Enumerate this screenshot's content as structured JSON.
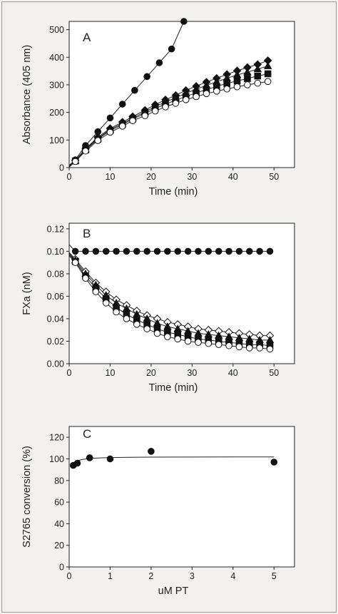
{
  "chart_data": [
    {
      "type": "line",
      "panel_label": "A",
      "xlabel": "Time (min)",
      "ylabel": "Absorbance (405 nm)",
      "xlim": [
        0,
        55
      ],
      "ylim": [
        0,
        530
      ],
      "xticks": [
        0,
        10,
        20,
        30,
        40,
        50
      ],
      "yticks": [
        0,
        100,
        200,
        300,
        400,
        500
      ],
      "grid": false,
      "series": [
        {
          "marker": "filled-circle",
          "x": [
            1.5,
            4,
            7,
            10,
            13,
            16,
            19,
            22,
            25,
            28
          ],
          "y": [
            28,
            80,
            130,
            180,
            230,
            280,
            330,
            380,
            430,
            530
          ]
        },
        {
          "marker": "filled-diamond",
          "x": [
            1.5,
            4,
            7,
            10,
            13,
            15.5,
            18.5,
            21,
            23.5,
            26,
            28.5,
            31,
            33.5,
            36,
            38.5,
            41,
            43.5,
            46,
            48.5
          ],
          "y": [
            26,
            68,
            110,
            142,
            165,
            185,
            208,
            228,
            246,
            262,
            280,
            295,
            310,
            324,
            338,
            351,
            363,
            374,
            388
          ]
        },
        {
          "marker": "filled-triangle",
          "x": [
            1.5,
            4,
            7,
            10,
            13,
            15.5,
            18.5,
            21,
            23.5,
            26,
            28.5,
            31,
            33.5,
            36,
            38.5,
            41,
            43.5,
            46,
            48.5
          ],
          "y": [
            25,
            66,
            106,
            138,
            160,
            180,
            202,
            221,
            238,
            253,
            270,
            284,
            298,
            311,
            324,
            336,
            346,
            357,
            368
          ]
        },
        {
          "marker": "filled-square",
          "x": [
            1.5,
            4,
            7,
            10,
            13,
            15.5,
            18.5,
            21,
            23.5,
            26,
            28.5,
            31,
            33.5,
            36,
            38.5,
            41,
            43.5,
            46,
            48.5
          ],
          "y": [
            24,
            64,
            103,
            134,
            156,
            176,
            196,
            214,
            230,
            244,
            258,
            271,
            283,
            294,
            305,
            314,
            323,
            332,
            340
          ]
        },
        {
          "marker": "open-circle",
          "x": [
            1.5,
            4,
            7,
            10,
            13,
            15.5,
            18.5,
            21,
            23.5,
            26,
            28.5,
            31,
            33.5,
            36,
            38.5,
            41,
            43.5,
            46,
            48.5
          ],
          "y": [
            22,
            60,
            98,
            128,
            150,
            170,
            188,
            205,
            220,
            233,
            246,
            257,
            268,
            277,
            285,
            293,
            300,
            306,
            312
          ]
        }
      ]
    },
    {
      "type": "line",
      "panel_label": "B",
      "xlabel": "Time (min)",
      "ylabel": "FXa (nM)",
      "xlim": [
        0,
        55
      ],
      "ylim": [
        0,
        0.125
      ],
      "xticks": [
        0,
        10,
        20,
        30,
        40,
        50
      ],
      "yticks": [
        "0.00",
        "0.02",
        "0.04",
        "0.06",
        "0.08",
        "0.10",
        "0.12"
      ],
      "grid": false,
      "series": [
        {
          "marker": "filled-circle",
          "x": [
            1.5,
            4,
            6.5,
            9,
            11.5,
            14,
            16.5,
            19,
            21.5,
            24,
            26.5,
            29,
            31.5,
            34,
            36.5,
            39,
            41.5,
            44,
            46.5,
            49
          ],
          "y": [
            0.1,
            0.1,
            0.1,
            0.1,
            0.1,
            0.1,
            0.1,
            0.1,
            0.1,
            0.1,
            0.1,
            0.1,
            0.1,
            0.1,
            0.1,
            0.1,
            0.1,
            0.1,
            0.1,
            0.1
          ]
        },
        {
          "marker": "open-diamond",
          "x": [
            1.5,
            4,
            6.5,
            9,
            11.5,
            14,
            16.5,
            19,
            21.5,
            24,
            26.5,
            29,
            31.5,
            34,
            36.5,
            39,
            41.5,
            44,
            46.5,
            49
          ],
          "y": [
            0.093,
            0.082,
            0.072,
            0.064,
            0.057,
            0.052,
            0.047,
            0.043,
            0.04,
            0.037,
            0.035,
            0.033,
            0.031,
            0.03,
            0.029,
            0.028,
            0.027,
            0.026,
            0.025,
            0.025
          ]
        },
        {
          "marker": "filled-triangle",
          "x": [
            1.5,
            4,
            6.5,
            9,
            11.5,
            14,
            16.5,
            19,
            21.5,
            24,
            26.5,
            29,
            31.5,
            34,
            36.5,
            39,
            41.5,
            44,
            46.5,
            49
          ],
          "y": [
            0.092,
            0.08,
            0.07,
            0.061,
            0.054,
            0.049,
            0.044,
            0.04,
            0.036,
            0.033,
            0.031,
            0.029,
            0.027,
            0.026,
            0.025,
            0.024,
            0.023,
            0.022,
            0.021,
            0.021
          ]
        },
        {
          "marker": "filled-square",
          "x": [
            1.5,
            4,
            6.5,
            9,
            11.5,
            14,
            16.5,
            19,
            21.5,
            24,
            26.5,
            29,
            31.5,
            34,
            36.5,
            39,
            41.5,
            44,
            46.5,
            49
          ],
          "y": [
            0.091,
            0.078,
            0.067,
            0.058,
            0.05,
            0.044,
            0.039,
            0.035,
            0.031,
            0.028,
            0.026,
            0.024,
            0.022,
            0.021,
            0.02,
            0.019,
            0.018,
            0.017,
            0.017,
            0.016
          ]
        },
        {
          "marker": "open-circle",
          "x": [
            1.5,
            4,
            6.5,
            9,
            11.5,
            14,
            16.5,
            19,
            21.5,
            24,
            26.5,
            29,
            31.5,
            34,
            36.5,
            39,
            41.5,
            44,
            46.5,
            49
          ],
          "y": [
            0.09,
            0.076,
            0.064,
            0.054,
            0.046,
            0.04,
            0.035,
            0.031,
            0.027,
            0.024,
            0.022,
            0.02,
            0.019,
            0.018,
            0.017,
            0.016,
            0.015,
            0.014,
            0.014,
            0.013
          ]
        }
      ]
    },
    {
      "type": "scatter",
      "panel_label": "C",
      "xlabel": "uM PT",
      "ylabel": "S2765 conversion  (%)",
      "xlim": [
        0,
        5.5
      ],
      "ylim": [
        0,
        130
      ],
      "xticks": [
        0,
        1,
        2,
        3,
        4,
        5
      ],
      "yticks": [
        0,
        20,
        40,
        60,
        80,
        100,
        120
      ],
      "grid": false,
      "series": [
        {
          "marker": "filled-circle",
          "x": [
            0.1,
            0.2,
            0.5,
            1,
            2,
            5
          ],
          "y": [
            94,
            96,
            101,
            100,
            107,
            97
          ]
        }
      ],
      "fit": {
        "x": [
          0.05,
          0.1,
          0.2,
          0.3,
          0.5,
          0.75,
          1,
          1.5,
          2,
          3,
          4,
          5
        ],
        "y": [
          93,
          95.5,
          98,
          99.3,
          100.4,
          100.9,
          101.2,
          101.5,
          101.6,
          101.7,
          101.8,
          101.8
        ]
      }
    }
  ]
}
